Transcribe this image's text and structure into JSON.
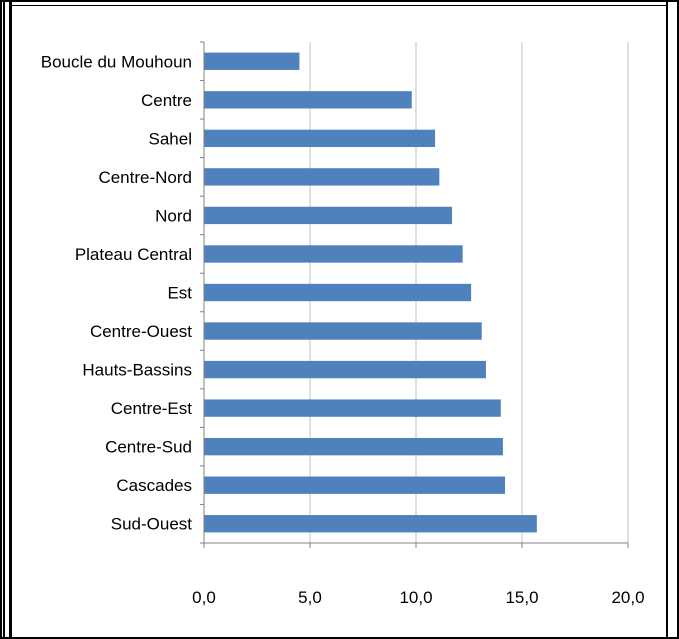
{
  "chart_data": {
    "type": "bar",
    "orientation": "horizontal",
    "categories": [
      "Boucle du Mouhoun",
      "Centre",
      "Sahel",
      "Centre-Nord",
      "Nord",
      "Plateau Central",
      "Est",
      "Centre-Ouest",
      "Hauts-Bassins",
      "Centre-Est",
      "Centre-Sud",
      "Cascades",
      "Sud-Ouest"
    ],
    "values": [
      4.5,
      9.8,
      10.9,
      11.1,
      11.7,
      12.2,
      12.6,
      13.1,
      13.3,
      14.0,
      14.1,
      14.2,
      15.7
    ],
    "xlim": [
      0,
      20
    ],
    "ticks": [
      "0,0",
      "5,0",
      "10,0",
      "15,0",
      "20,0"
    ],
    "tick_values": [
      0,
      5,
      10,
      15,
      20
    ],
    "grid": true,
    "bar_color": "#4F81BD",
    "grid_color": "#C0C0C0"
  }
}
